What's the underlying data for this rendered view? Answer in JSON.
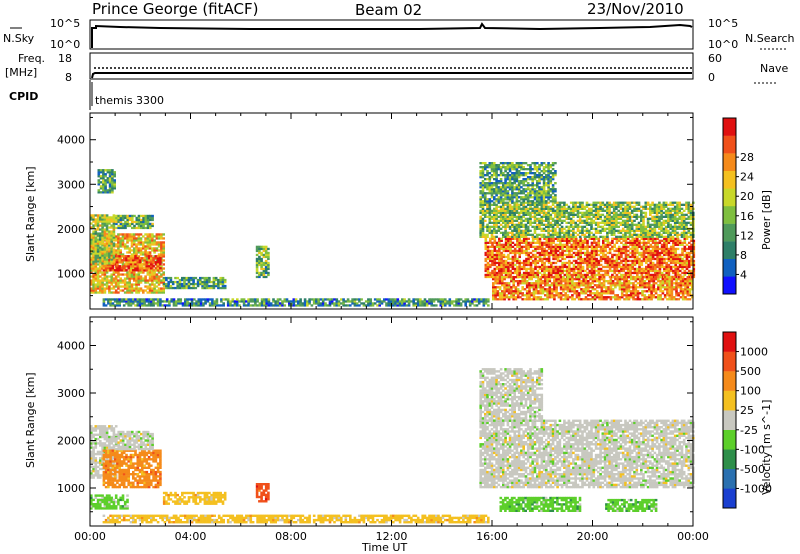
{
  "header": {
    "station": "Prince George (fitACF)",
    "beam": "Beam 02",
    "date": "23/Nov/2010"
  },
  "top_panels": {
    "nsky_label": "N.Sky",
    "nsky_ticks": [
      "10^5",
      "10^0"
    ],
    "nsearch_label": "N.Search",
    "nsearch_ticks": [
      "10^5",
      "10^0"
    ],
    "freq_label_1": "Freq.",
    "freq_label_2": "[MHz]",
    "freq_ticks": [
      "18",
      "8"
    ],
    "nave_label": "Nave",
    "nave_ticks": [
      "60",
      "0"
    ],
    "cpid_label": "CPID",
    "cpid_value": "themis 3300"
  },
  "chart_data": [
    {
      "type": "heatmap",
      "name": "power",
      "ylabel": "Slant Range [km]",
      "xlabel": "Time UT",
      "x_ticks": [
        "00:00",
        "04:00",
        "08:00",
        "12:00",
        "16:00",
        "20:00",
        "00:00"
      ],
      "y_ticks": [
        "1000",
        "2000",
        "3000",
        "4000"
      ],
      "ylim": [
        200,
        4600
      ],
      "xlim_hours": [
        0,
        24
      ],
      "colorbar": {
        "label": "Power [dB]",
        "ticks": [
          "28",
          "24",
          "20",
          "16",
          "12",
          "8",
          "4"
        ],
        "colors": [
          "#1010ff",
          "#1060c0",
          "#2e7f68",
          "#4f9a5a",
          "#7fbf3f",
          "#c8d82a",
          "#f4c020",
          "#f58a1a",
          "#f0501a",
          "#e01010"
        ]
      },
      "regions": [
        {
          "t0": 0.0,
          "t1": 2.9,
          "r0": 550,
          "r1": 1900,
          "level": 0.65
        },
        {
          "t0": 0.5,
          "t1": 2.8,
          "r0": 1050,
          "r1": 1400,
          "level": 0.85
        },
        {
          "t0": 0.0,
          "t1": 0.9,
          "r0": 1200,
          "r1": 2300,
          "level": 0.5
        },
        {
          "t0": 1.0,
          "t1": 2.5,
          "r0": 2000,
          "r1": 2300,
          "level": 0.4
        },
        {
          "t0": 0.3,
          "t1": 1.0,
          "r0": 2800,
          "r1": 3300,
          "level": 0.35
        },
        {
          "t0": 2.9,
          "t1": 5.4,
          "r0": 650,
          "r1": 900,
          "level": 0.35
        },
        {
          "t0": 6.6,
          "t1": 7.1,
          "r0": 900,
          "r1": 1600,
          "level": 0.4
        },
        {
          "t0": 0.5,
          "t1": 15.8,
          "r0": 260,
          "r1": 420,
          "level": 0.3
        },
        {
          "t0": 15.7,
          "t1": 24.0,
          "r0": 900,
          "r1": 1800,
          "level": 0.8
        },
        {
          "t0": 16.0,
          "t1": 24.0,
          "r0": 400,
          "r1": 900,
          "level": 0.75
        },
        {
          "t0": 15.5,
          "t1": 24.0,
          "r0": 1800,
          "r1": 2600,
          "level": 0.45
        },
        {
          "t0": 15.5,
          "t1": 18.5,
          "r0": 2600,
          "r1": 3500,
          "level": 0.35
        }
      ]
    },
    {
      "type": "heatmap",
      "name": "velocity",
      "ylabel": "Slant Range [km]",
      "xlabel": "Time UT",
      "x_ticks": [
        "00:00",
        "04:00",
        "08:00",
        "12:00",
        "16:00",
        "20:00",
        "00:00"
      ],
      "y_ticks": [
        "1000",
        "2000",
        "3000",
        "4000"
      ],
      "ylim": [
        200,
        4600
      ],
      "xlim_hours": [
        0,
        24
      ],
      "colorbar": {
        "label": "Velocity [m s^-1]",
        "ticks": [
          "1000",
          "500",
          "100",
          "25",
          "-25",
          "-100",
          "-500",
          "-1000"
        ],
        "colors": [
          "#1a3fd0",
          "#2a70b0",
          "#2e8f4a",
          "#5ccf2a",
          "#c8c8c0",
          "#f4c020",
          "#f58a1a",
          "#f0501a",
          "#e01010"
        ]
      },
      "regions": [
        {
          "t0": 0.0,
          "t1": 1.0,
          "r0": 1200,
          "r1": 2300,
          "cat": 4
        },
        {
          "t0": 0.5,
          "t1": 2.8,
          "r0": 1000,
          "r1": 1800,
          "cat": 6
        },
        {
          "t0": 0.0,
          "t1": 1.5,
          "r0": 550,
          "r1": 850,
          "cat": 3
        },
        {
          "t0": 1.0,
          "t1": 2.5,
          "r0": 1800,
          "r1": 2200,
          "cat": 4
        },
        {
          "t0": 2.9,
          "t1": 5.4,
          "r0": 650,
          "r1": 900,
          "cat": 5
        },
        {
          "t0": 6.6,
          "t1": 7.1,
          "r0": 700,
          "r1": 1100,
          "cat": 7
        },
        {
          "t0": 0.5,
          "t1": 15.8,
          "r0": 260,
          "r1": 420,
          "cat": 5
        },
        {
          "t0": 15.5,
          "t1": 24.0,
          "r0": 1000,
          "r1": 2400,
          "cat": 4
        },
        {
          "t0": 16.3,
          "t1": 19.5,
          "r0": 500,
          "r1": 800,
          "cat": 3
        },
        {
          "t0": 20.5,
          "t1": 22.5,
          "r0": 500,
          "r1": 750,
          "cat": 3
        },
        {
          "t0": 15.5,
          "t1": 18.0,
          "r0": 2400,
          "r1": 3500,
          "cat": 4
        }
      ]
    }
  ]
}
